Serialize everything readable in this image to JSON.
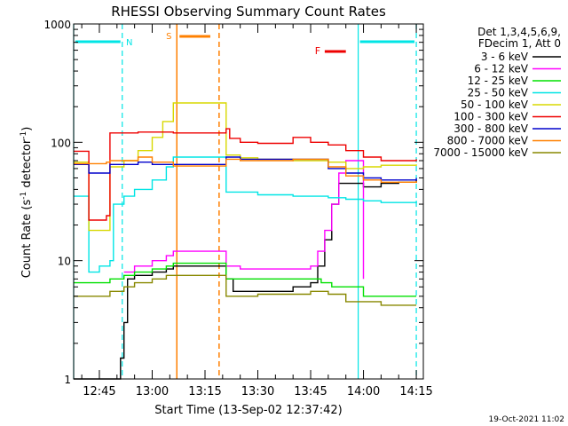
{
  "chart_data": {
    "type": "line",
    "title": "RHESSI Observing Summary Count Rates",
    "xlabel": "Start Time (13-Sep-02 12:37:42)",
    "ylabel_main": "Count Rate (s",
    "ylabel_sup1": "-1",
    "ylabel_mid": " detector",
    "ylabel_sup2": "-1",
    "ylabel_end": ")",
    "yscale": "log",
    "ylim": [
      1,
      1000
    ],
    "xlim": [
      "12:37:42",
      "14:17:00"
    ],
    "x_ticks": [
      "12:45",
      "13:00",
      "13:15",
      "13:30",
      "13:45",
      "14:00",
      "14:15"
    ],
    "y_ticks": [
      "1",
      "10",
      "100",
      "1000"
    ],
    "legend": {
      "position": "right",
      "header": [
        "Det 1,3,4,5,6,9,",
        "FDecim 1, Att 0"
      ],
      "entries": [
        {
          "label": "3 - 6 keV",
          "color": "#000000"
        },
        {
          "label": "6 - 12 keV",
          "color": "#ff00ff"
        },
        {
          "label": "12 - 25 keV",
          "color": "#00e000"
        },
        {
          "label": "25 - 50 keV",
          "color": "#00e5e5"
        },
        {
          "label": "50 - 100 keV",
          "color": "#d8d800"
        },
        {
          "label": "100 - 300 keV",
          "color": "#ee0000"
        },
        {
          "label": "300 - 800 keV",
          "color": "#0000cc"
        },
        {
          "label": "800 - 7000 keV",
          "color": "#ff8000"
        },
        {
          "label": "7000 - 15000 keV",
          "color": "#888800"
        }
      ]
    },
    "annotations": [
      {
        "label": "N",
        "color": "#00e5e5",
        "type": "night",
        "start": "12:37:42",
        "end": "12:51:30"
      },
      {
        "label": "N",
        "color": "#00e5e5",
        "type": "night",
        "start": "13:58:30",
        "end": "14:15:00"
      },
      {
        "label": "S",
        "color": "#ff8000",
        "type": "saa",
        "start": "13:07:00",
        "end": "13:19:00"
      },
      {
        "label": "F",
        "color": "#ee0000",
        "type": "flare",
        "start": "13:49:00",
        "end": "13:55:00"
      }
    ],
    "series": [
      {
        "name": "3 - 6 keV",
        "color": "#000000",
        "x": [
          "12:37:42",
          "12:51:00",
          "12:52:00",
          "12:53:00",
          "12:55:00",
          "13:00:00",
          "13:04:00",
          "13:06:00",
          "13:21:00",
          "13:23:00",
          "13:30:00",
          "13:40:00",
          "13:45:00",
          "13:47:00",
          "13:49:00",
          "13:51:00",
          "13:53:00",
          "13:54:30",
          "13:56:00",
          "14:00:00",
          "14:05:00",
          "14:10:00",
          "14:15:00"
        ],
        "y": [
          1,
          1.5,
          3,
          7,
          7.5,
          8,
          8.5,
          9,
          7,
          5.5,
          5.5,
          6,
          6.5,
          9,
          15,
          30,
          45,
          45,
          45,
          42,
          45,
          46,
          48
        ]
      },
      {
        "name": "6 - 12 keV",
        "color": "#ff00ff",
        "x": [
          "12:52:00",
          "12:55:00",
          "13:00:00",
          "13:04:00",
          "13:06:00",
          "13:21:00",
          "13:25:00",
          "13:30:00",
          "13:40:00",
          "13:45:00",
          "13:47:00",
          "13:49:00",
          "13:51:00",
          "13:53:00",
          "13:55:00",
          "14:00:00"
        ],
        "y": [
          8,
          9,
          10,
          11,
          12,
          9,
          8.5,
          8.5,
          8.5,
          9,
          12,
          18,
          30,
          55,
          70,
          7
        ]
      },
      {
        "name": "12 - 25 keV",
        "color": "#00e000",
        "x": [
          "12:37:42",
          "12:45:00",
          "12:48:00",
          "12:52:00",
          "12:55:00",
          "13:00:00",
          "13:04:00",
          "13:06:00",
          "13:21:00",
          "13:25:00",
          "13:30:00",
          "13:40:00",
          "13:45:00",
          "13:48:00",
          "13:51:00",
          "13:55:00",
          "14:00:00",
          "14:05:00",
          "14:15:00"
        ],
        "y": [
          6.5,
          6.5,
          7,
          7.5,
          8,
          8.5,
          9,
          9.5,
          7,
          7,
          7,
          7,
          7,
          6.5,
          6,
          6,
          5,
          5,
          5
        ]
      },
      {
        "name": "25 - 50 keV",
        "color": "#00e5e5",
        "x": [
          "12:37:42",
          "12:41:00",
          "12:42:00",
          "12:45:00",
          "12:48:00",
          "12:49:00",
          "12:52:00",
          "12:55:00",
          "13:00:00",
          "13:04:00",
          "13:06:00",
          "13:21:00",
          "13:30:00",
          "13:40:00",
          "13:50:00",
          "13:55:00",
          "14:00:00",
          "14:05:00",
          "14:15:00"
        ],
        "y": [
          35,
          35,
          8,
          9,
          10,
          30,
          35,
          40,
          48,
          62,
          75,
          38,
          36,
          35,
          34,
          33,
          32,
          31,
          32
        ]
      },
      {
        "name": "50 - 100 keV",
        "color": "#d8d800",
        "x": [
          "12:37:42",
          "12:41:00",
          "12:42:00",
          "12:47:00",
          "12:48:00",
          "12:52:00",
          "12:56:00",
          "13:00:00",
          "13:03:00",
          "13:06:00",
          "13:21:00",
          "13:25:00",
          "13:30:00",
          "13:40:00",
          "13:50:00",
          "13:55:00",
          "14:00:00",
          "14:05:00",
          "14:15:00"
        ],
        "y": [
          68,
          68,
          18,
          18,
          62,
          70,
          85,
          110,
          150,
          215,
          78,
          74,
          72,
          70,
          68,
          60,
          62,
          64,
          65
        ]
      },
      {
        "name": "100 - 300 keV",
        "color": "#ee0000",
        "x": [
          "12:37:42",
          "12:41:00",
          "12:42:00",
          "12:47:00",
          "12:48:00",
          "12:56:00",
          "13:00:00",
          "13:03:00",
          "13:06:00",
          "13:21:00",
          "13:22:00",
          "13:25:00",
          "13:30:00",
          "13:35:00",
          "13:40:00",
          "13:45:00",
          "13:50:00",
          "13:55:00",
          "14:00:00",
          "14:05:00",
          "14:10:00",
          "14:15:00"
        ],
        "y": [
          84,
          84,
          22,
          24,
          120,
          122,
          122,
          122,
          120,
          130,
          108,
          100,
          98,
          98,
          110,
          100,
          95,
          85,
          75,
          70,
          70,
          72
        ]
      },
      {
        "name": "300 - 800 keV",
        "color": "#0000cc",
        "x": [
          "12:37:42",
          "12:41:00",
          "12:42:00",
          "12:47:00",
          "12:48:00",
          "12:56:00",
          "13:00:00",
          "13:06:00",
          "13:21:00",
          "13:25:00",
          "13:30:00",
          "13:40:00",
          "13:45:00",
          "13:50:00",
          "13:55:00",
          "14:00:00",
          "14:05:00",
          "14:15:00"
        ],
        "y": [
          65,
          65,
          55,
          55,
          65,
          68,
          65,
          65,
          75,
          72,
          72,
          72,
          72,
          60,
          55,
          50,
          48,
          50
        ]
      },
      {
        "name": "800 - 7000 keV",
        "color": "#ff8000",
        "x": [
          "12:37:42",
          "12:41:00",
          "12:42:00",
          "12:47:00",
          "12:48:00",
          "12:56:00",
          "13:00:00",
          "13:06:00",
          "13:21:00",
          "13:25:00",
          "13:30:00",
          "13:40:00",
          "13:45:00",
          "13:50:00",
          "13:55:00",
          "14:00:00",
          "14:05:00",
          "14:15:00"
        ],
        "y": [
          66,
          66,
          66,
          68,
          70,
          75,
          68,
          63,
          72,
          70,
          70,
          72,
          72,
          62,
          52,
          48,
          46,
          47
        ]
      },
      {
        "name": "7000 - 15000 keV",
        "color": "#888800",
        "x": [
          "12:37:42",
          "12:45:00",
          "12:48:00",
          "12:52:00",
          "12:55:00",
          "13:00:00",
          "13:04:00",
          "13:06:00",
          "13:21:00",
          "13:25:00",
          "13:30:00",
          "13:40:00",
          "13:45:00",
          "13:50:00",
          "13:55:00",
          "14:00:00",
          "14:05:00",
          "14:10:00",
          "14:15:00"
        ],
        "y": [
          5,
          5,
          5.5,
          6,
          6.5,
          7,
          7.5,
          7.5,
          5,
          5,
          5.2,
          5.2,
          5.5,
          5.2,
          4.5,
          4.5,
          4.2,
          4.2,
          4.2
        ]
      }
    ]
  },
  "footer_timestamp": "19-Oct-2021 11:02"
}
